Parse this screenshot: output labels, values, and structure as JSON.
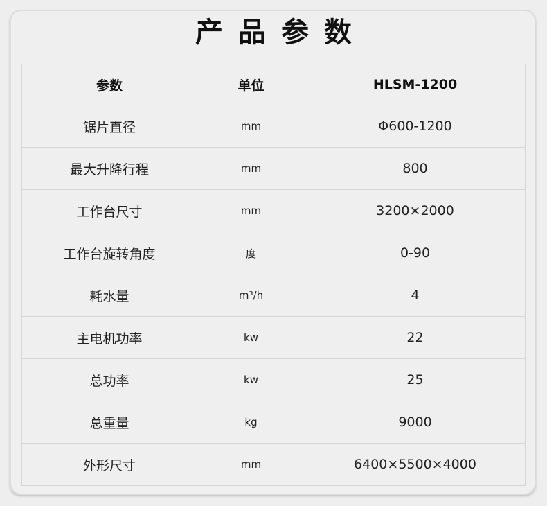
{
  "title": "产品参数",
  "table": {
    "headers": [
      "参数",
      "单位",
      "HLSM-1200"
    ],
    "rows": [
      [
        "锯片直径",
        "mm",
        "Φ600-1200"
      ],
      [
        "最大升降行程",
        "mm",
        "800"
      ],
      [
        "工作台尺寸",
        "mm",
        "3200×2000"
      ],
      [
        "工作台旋转角度",
        "度",
        "0-90"
      ],
      [
        "耗水量",
        "m³/h",
        "4"
      ],
      [
        "主电机功率",
        "kw",
        "22"
      ],
      [
        "总功率",
        "kw",
        "25"
      ],
      [
        "总重量",
        "kg",
        "9000"
      ],
      [
        "外形尺寸",
        "mm",
        "6400×5500×4000"
      ]
    ]
  }
}
